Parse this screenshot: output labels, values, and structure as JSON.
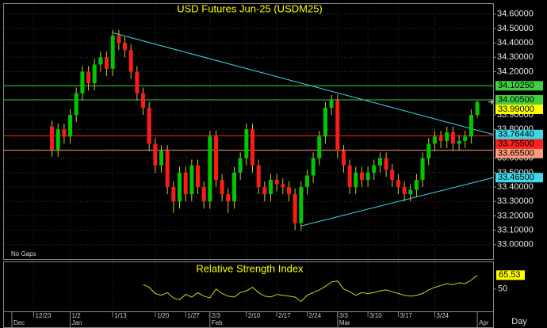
{
  "chart_data": [
    {
      "type": "candlestick",
      "title": "USD Futures Jun-25 (USDM25)",
      "note": "No Gaps",
      "period": "Day",
      "open": [
        33.82,
        33.66,
        33.8,
        33.75,
        33.9,
        34.05,
        34.2,
        34.12,
        34.25,
        34.3,
        34.22,
        34.45,
        34.4,
        34.35,
        34.2,
        34.05,
        33.95,
        33.7,
        33.55,
        33.65,
        33.4,
        33.3,
        33.5,
        33.35,
        33.55,
        33.4,
        33.3,
        33.75,
        33.45,
        33.35,
        33.3,
        33.5,
        33.6,
        33.8,
        33.55,
        33.4,
        33.35,
        33.45,
        33.42,
        33.4,
        33.35,
        33.15,
        33.4,
        33.48,
        33.6,
        33.75,
        33.95,
        34.0,
        33.65,
        33.55,
        33.4,
        33.5,
        33.45,
        33.5,
        33.55,
        33.6,
        33.52,
        33.45,
        33.4,
        33.35,
        33.38,
        33.45,
        33.6,
        33.7,
        33.75,
        33.72,
        33.78,
        33.7,
        33.72,
        33.75,
        33.9
      ],
      "high": [
        33.86,
        33.84,
        33.84,
        33.94,
        34.09,
        34.24,
        34.24,
        34.29,
        34.34,
        34.34,
        34.49,
        34.49,
        34.44,
        34.39,
        34.24,
        34.09,
        33.99,
        33.74,
        33.69,
        33.69,
        33.44,
        33.54,
        33.54,
        33.59,
        33.59,
        33.44,
        33.79,
        33.79,
        33.49,
        33.39,
        33.54,
        33.64,
        33.84,
        33.84,
        33.59,
        33.44,
        33.49,
        33.49,
        33.46,
        33.44,
        33.39,
        33.44,
        33.52,
        33.64,
        33.79,
        33.99,
        34.04,
        34.04,
        33.69,
        33.59,
        33.54,
        33.54,
        33.54,
        33.59,
        33.64,
        33.64,
        33.56,
        33.49,
        33.44,
        33.42,
        33.49,
        33.64,
        33.74,
        33.79,
        33.79,
        33.82,
        33.82,
        33.76,
        33.79,
        33.94,
        34.0
      ],
      "low": [
        33.61,
        33.61,
        33.7,
        33.7,
        33.85,
        34.0,
        34.07,
        34.07,
        34.2,
        34.17,
        34.17,
        34.35,
        34.3,
        34.15,
        34.0,
        33.9,
        33.65,
        33.5,
        33.5,
        33.35,
        33.22,
        33.25,
        33.3,
        33.3,
        33.35,
        33.25,
        33.25,
        33.4,
        33.3,
        33.22,
        33.25,
        33.45,
        33.55,
        33.5,
        33.35,
        33.3,
        33.3,
        33.37,
        33.35,
        33.3,
        33.1,
        33.1,
        33.35,
        33.43,
        33.55,
        33.7,
        33.9,
        33.6,
        33.5,
        33.35,
        33.35,
        33.4,
        33.4,
        33.45,
        33.5,
        33.47,
        33.4,
        33.35,
        33.3,
        33.3,
        33.33,
        33.4,
        33.55,
        33.65,
        33.67,
        33.67,
        33.65,
        33.65,
        33.67,
        33.7,
        33.88
      ],
      "close": [
        33.66,
        33.8,
        33.75,
        33.9,
        34.05,
        34.2,
        34.12,
        34.25,
        34.3,
        34.22,
        34.45,
        34.4,
        34.35,
        34.2,
        34.05,
        33.95,
        33.7,
        33.55,
        33.65,
        33.4,
        33.3,
        33.5,
        33.35,
        33.55,
        33.4,
        33.3,
        33.75,
        33.45,
        33.35,
        33.3,
        33.5,
        33.6,
        33.8,
        33.55,
        33.4,
        33.35,
        33.45,
        33.42,
        33.4,
        33.35,
        33.15,
        33.4,
        33.48,
        33.6,
        33.75,
        33.95,
        34.0,
        33.65,
        33.55,
        33.4,
        33.5,
        33.45,
        33.5,
        33.55,
        33.6,
        33.52,
        33.45,
        33.4,
        33.35,
        33.38,
        33.45,
        33.6,
        33.7,
        33.75,
        33.72,
        33.78,
        33.7,
        33.72,
        33.75,
        33.9,
        33.99
      ],
      "up_color": "#00c800",
      "down_color": "#ff1a1a",
      "wick_color": "#c8c832",
      "last_label": {
        "value": 33.99,
        "label": "33.99000",
        "color": "#ffff00"
      },
      "levels": [
        {
          "value": 34.1025,
          "label": "34.10250",
          "color": "#40d040"
        },
        {
          "value": 34.005,
          "label": "34.00500",
          "color": "#40d040"
        },
        {
          "value": 33.755,
          "label": "33.75500",
          "color": "#ff2020"
        },
        {
          "value": 33.655,
          "label": "33.65500",
          "color": "#ff9a7a"
        }
      ],
      "trendlines": [
        {
          "x": [
            10,
            72.6
          ],
          "y": [
            34.47,
            33.7644
          ],
          "label": "33.76440",
          "color": "#40d8e8"
        },
        {
          "x": [
            41,
            72.6
          ],
          "y": [
            33.13,
            33.465
          ],
          "label": "33.46500",
          "color": "#40d8e8"
        }
      ],
      "xlim": [
        -7.9,
        72.6
      ],
      "ylim": [
        32.9,
        34.67
      ],
      "yticks": [
        {
          "value": 34.6,
          "label": "34.60000"
        },
        {
          "value": 34.5,
          "label": "34.50000"
        },
        {
          "value": 34.4,
          "label": "34.40000"
        },
        {
          "value": 34.3,
          "label": "34.30000"
        },
        {
          "value": 34.2,
          "label": "34.20000"
        },
        {
          "value": 33.9,
          "label": "33.90000"
        },
        {
          "value": 33.8,
          "label": "33.80000"
        },
        {
          "value": 33.6,
          "label": "33.60000"
        },
        {
          "value": 33.5,
          "label": "33.50000"
        },
        {
          "value": 33.4,
          "label": "33.40000"
        },
        {
          "value": 33.3,
          "label": "33.30000"
        },
        {
          "value": 33.2,
          "label": "33.20000"
        },
        {
          "value": 33.1,
          "label": "33.10000"
        },
        {
          "value": 33.0,
          "label": "33.00000"
        }
      ],
      "xticks": [
        {
          "value": -3,
          "label": "12/23"
        },
        {
          "value": 3,
          "label": "1/2"
        },
        {
          "value": 10,
          "label": "1/13"
        },
        {
          "value": 17,
          "label": "1/20"
        },
        {
          "value": 22,
          "label": "1/27"
        },
        {
          "value": 26,
          "label": "2/3"
        },
        {
          "value": 32,
          "label": "2/10"
        },
        {
          "value": 37,
          "label": "2/17"
        },
        {
          "value": 42,
          "label": "2/24"
        },
        {
          "value": 47,
          "label": "3/3"
        },
        {
          "value": 52,
          "label": "3/10"
        },
        {
          "value": 57,
          "label": "3/17"
        },
        {
          "value": 63,
          "label": "3/24"
        }
      ],
      "months": [
        {
          "value": -6.6,
          "label": "Dec"
        },
        {
          "value": 3,
          "label": "Jan"
        },
        {
          "value": 26,
          "label": "Feb"
        },
        {
          "value": 47,
          "label": "Mar"
        },
        {
          "value": 70,
          "label": "Apr"
        }
      ],
      "grid": true
    },
    {
      "type": "line",
      "title": "Relative Strength Index",
      "color": "#d8d020",
      "values": [
        null,
        null,
        null,
        null,
        null,
        null,
        null,
        null,
        null,
        null,
        null,
        null,
        null,
        null,
        null,
        55,
        52,
        45,
        43,
        46,
        40,
        38,
        44,
        41,
        46,
        42,
        40,
        50,
        45,
        42,
        41,
        46,
        48,
        52,
        46,
        42,
        41,
        44,
        43,
        42,
        41,
        36,
        43,
        46,
        49,
        53,
        58,
        59,
        50,
        47,
        43,
        46,
        45,
        46,
        48,
        49,
        47,
        45,
        43,
        42,
        43,
        45,
        49,
        52,
        54,
        56,
        55,
        57,
        56,
        60,
        65.53
      ],
      "value_label": {
        "value": 65.53,
        "label": "65.53",
        "color": "#ffff00"
      },
      "ylim": [
        25,
        80
      ],
      "yticks": [
        50
      ]
    }
  ]
}
